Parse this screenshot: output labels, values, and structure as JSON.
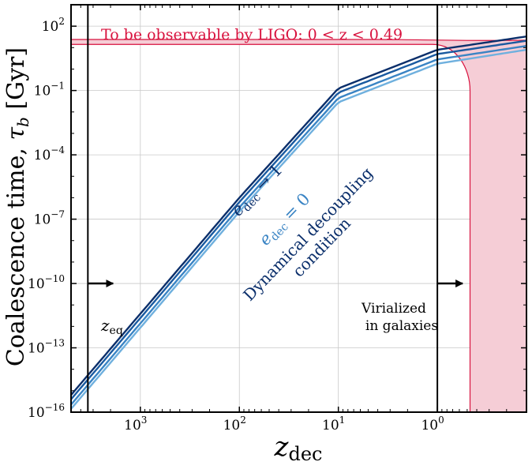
{
  "chart_data": {
    "type": "line",
    "title": "",
    "xlabel": "z_dec",
    "xlabel_main": "z",
    "xlabel_sub": "dec",
    "ylabel": "Coalescence time, τ_b [Gyr]",
    "ylabel_main": "Coalescence time, ",
    "ylabel_tau": "τ",
    "ylabel_tau_sub": "b",
    "ylabel_unit": " [Gyr]",
    "x_axis": {
      "scale": "log",
      "direction": "reversed",
      "log10_range": [
        3.7,
        -0.9
      ],
      "ticks": [
        {
          "base": "10",
          "exp": "3",
          "log10": 3
        },
        {
          "base": "10",
          "exp": "2",
          "log10": 2
        },
        {
          "base": "10",
          "exp": "1",
          "log10": 1
        },
        {
          "base": "10",
          "exp": "0",
          "log10": 0
        }
      ]
    },
    "y_axis": {
      "scale": "log",
      "log10_range": [
        -16,
        3
      ],
      "ticks": [
        {
          "base": "10",
          "exp": "2",
          "log10": 2
        },
        {
          "base": "10",
          "exp": "−1",
          "log10": -1
        },
        {
          "base": "10",
          "exp": "−4",
          "log10": -4
        },
        {
          "base": "10",
          "exp": "−7",
          "log10": -7
        },
        {
          "base": "10",
          "exp": "−10",
          "log10": -10
        },
        {
          "base": "10",
          "exp": "−13",
          "log10": -13
        },
        {
          "base": "10",
          "exp": "−16",
          "log10": -16
        }
      ]
    },
    "series": [
      {
        "name": "e_dec → 1",
        "color": "#0b2f6b",
        "offset_log10": 0.4,
        "points": [
          [
            3.7,
            -15.2
          ],
          [
            2.0,
            -6.0
          ],
          [
            1.0,
            -0.9
          ],
          [
            0.0,
            0.9
          ],
          [
            -0.9,
            1.52
          ]
        ]
      },
      {
        "name": "",
        "color": "#1a5aa0",
        "offset_log10": 0.13,
        "points": [
          [
            3.7,
            -15.4
          ],
          [
            2.0,
            -6.2
          ],
          [
            1.0,
            -1.1
          ],
          [
            0.0,
            0.7
          ],
          [
            -0.9,
            1.32
          ]
        ]
      },
      {
        "name": "",
        "color": "#3a84c4",
        "offset_log10": -0.13,
        "points": [
          [
            3.7,
            -15.65
          ],
          [
            2.0,
            -6.45
          ],
          [
            1.0,
            -1.35
          ],
          [
            0.0,
            0.45
          ],
          [
            -0.9,
            1.08
          ]
        ]
      },
      {
        "name": "e_dec = 0",
        "color": "#6fb0de",
        "offset_log10": -0.4,
        "points": [
          [
            3.7,
            -15.85
          ],
          [
            2.0,
            -6.65
          ],
          [
            1.0,
            -1.55
          ],
          [
            0.0,
            0.25
          ],
          [
            -0.9,
            0.9
          ]
        ]
      }
    ],
    "ligo_region": {
      "label": "To be observable by LIGO: 0 < z < 0.49",
      "color": "#d8123e",
      "fill": "#f5cdd6",
      "band_log10_tau": [
        1.15,
        1.38
      ],
      "right_edge_log10_tau": 0.98,
      "vertical_log10_z": -0.33,
      "vertical_knee_log10_z": -0.2
    },
    "vertical_lines": [
      {
        "name": "z_eq",
        "log10_z": 3.53,
        "label_main": "z",
        "label_sub": "eq",
        "arrow_at_log10_tau": -10
      },
      {
        "name": "virialized",
        "log10_z": 0.0,
        "label_line1": "Virialized",
        "label_line2": "in galaxies",
        "arrow_at_log10_tau": -10
      }
    ],
    "annotations": {
      "edec_one_main": "e",
      "edec_one_sub": "dec",
      "edec_one_rest": " → 1",
      "edec_zero_main": "e",
      "edec_zero_sub": "dec",
      "edec_zero_rest": " = 0",
      "condition_line1": "Dynamical decoupling",
      "condition_line2": "condition"
    },
    "grid": true
  }
}
